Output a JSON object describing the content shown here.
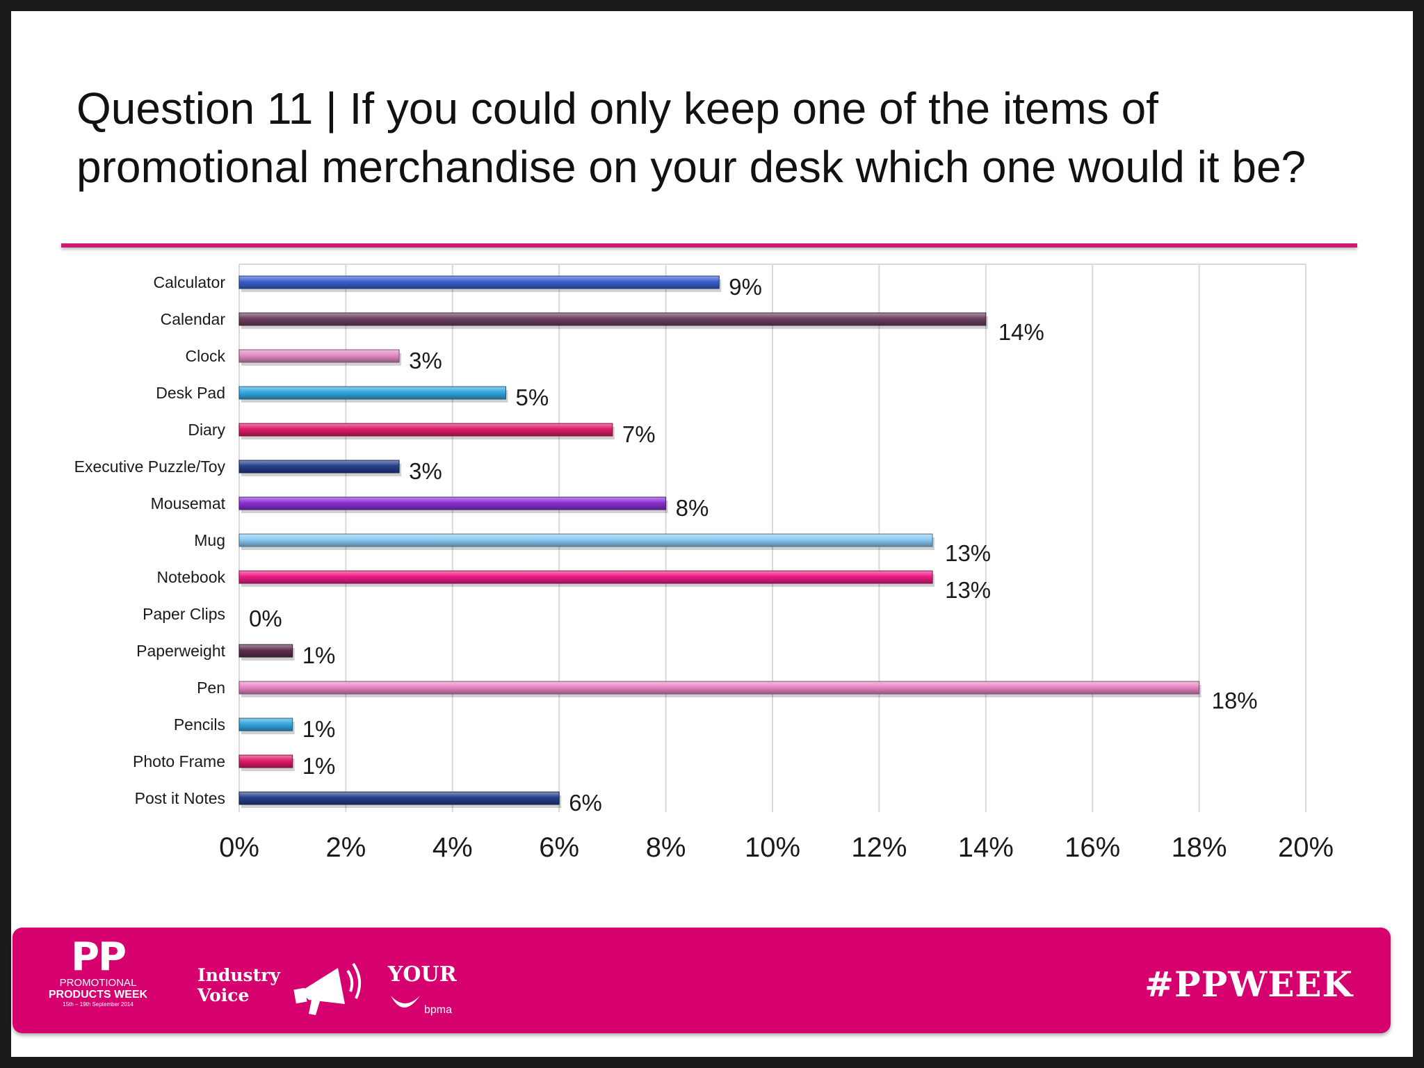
{
  "slide": {
    "title": "Question 11 | If you could only keep one of the items of promotional merchandise on your desk which one would it be?"
  },
  "chart_data": {
    "type": "bar",
    "orientation": "horizontal",
    "categories": [
      "Calculator",
      "Calendar",
      "Clock",
      "Desk Pad",
      "Diary",
      "Executive Puzzle/Toy",
      "Mousemat",
      "Mug",
      "Notebook",
      "Paper Clips",
      "Paperweight",
      "Pen",
      "Pencils",
      "Photo Frame",
      "Post it Notes"
    ],
    "values": [
      9,
      14,
      3,
      5,
      7,
      3,
      8,
      13,
      13,
      0,
      1,
      18,
      1,
      1,
      6
    ],
    "data_labels": [
      "9%",
      "14%",
      "3%",
      "5%",
      "7%",
      "3%",
      "8%",
      "13%",
      "13%",
      "0%",
      "1%",
      "18%",
      "1%",
      "1%",
      "6%"
    ],
    "bar_colors": [
      "#3a5fcd",
      "#6b3f60",
      "#e28bc3",
      "#35a7e0",
      "#e01c66",
      "#253f8a",
      "#8b2fd1",
      "#8ccaf4",
      "#ee1b84",
      "#999999",
      "#5e2f50",
      "#e688c2",
      "#35a7e0",
      "#e01c66",
      "#253f8a"
    ],
    "xlim": [
      0,
      20
    ],
    "x_ticks": [
      "0%",
      "2%",
      "4%",
      "6%",
      "8%",
      "10%",
      "12%",
      "14%",
      "16%",
      "18%",
      "20%"
    ],
    "grid": true,
    "xlabel": "",
    "ylabel": ""
  },
  "footer": {
    "pp_logo": "PP",
    "pp_line1": "PROMOTIONAL",
    "pp_line2": "PRODUCTS WEEK",
    "pp_line3": "15th – 19th September 2014",
    "industry": "Industry",
    "voice": "Voice",
    "your": "YOUR",
    "bpma": "bpma",
    "hashtag": "#PPWEEK",
    "background": "#d6006f"
  }
}
